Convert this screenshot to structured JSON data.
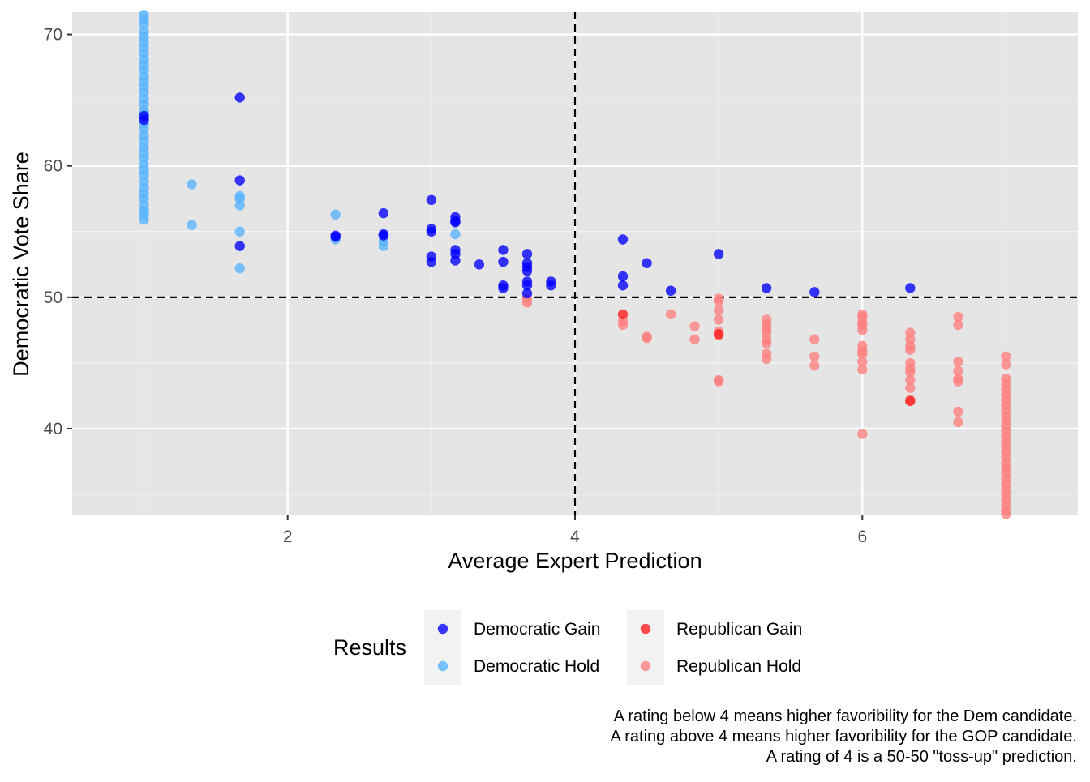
{
  "chart_data": {
    "type": "scatter",
    "title": "",
    "xlabel": "Average Expert Prediction",
    "ylabel": "Democratic Vote Share",
    "xlim": [
      0.5,
      7.5
    ],
    "ylim": [
      33.4,
      71.7
    ],
    "x_ticks": [
      2,
      4,
      6
    ],
    "y_ticks": [
      40,
      50,
      60,
      70
    ],
    "grid": true,
    "reference_lines": {
      "vertical_x": 4,
      "horizontal_y": 50,
      "style": "dashed"
    },
    "legend": {
      "title": "Results",
      "placement": "bottom"
    },
    "caption": [
      "A rating below 4 means higher favoribility for the Dem candidate.",
      "A rating above 4 means higher favoribility for the GOP candidate.",
      "A rating of 4 is a 50-50 \"toss-up\" prediction."
    ],
    "series": [
      {
        "name": "Democratic Gain",
        "color": "#0000ff",
        "points": [
          [
            1,
            63.5
          ],
          [
            1,
            63.8
          ],
          [
            1.667,
            65.2
          ],
          [
            1.667,
            58.9
          ],
          [
            1.667,
            53.9
          ],
          [
            2.333,
            54.7
          ],
          [
            2.333,
            54.6
          ],
          [
            2.667,
            56.4
          ],
          [
            2.667,
            54.8
          ],
          [
            2.667,
            54.7
          ],
          [
            3,
            57.4
          ],
          [
            3,
            55.2
          ],
          [
            3,
            55.0
          ],
          [
            3,
            53.1
          ],
          [
            3,
            52.7
          ],
          [
            3.167,
            56.1
          ],
          [
            3.167,
            55.8
          ],
          [
            3.167,
            55.7
          ],
          [
            3.167,
            53.6
          ],
          [
            3.167,
            53.3
          ],
          [
            3.167,
            52.8
          ],
          [
            3.333,
            52.5
          ],
          [
            3.5,
            53.6
          ],
          [
            3.5,
            52.7
          ],
          [
            3.5,
            50.9
          ],
          [
            3.5,
            50.7
          ],
          [
            3.667,
            53.3
          ],
          [
            3.667,
            52.6
          ],
          [
            3.667,
            52.3
          ],
          [
            3.667,
            52.0
          ],
          [
            3.667,
            51.2
          ],
          [
            3.667,
            50.9
          ],
          [
            3.667,
            50.3
          ],
          [
            3.833,
            51.2
          ],
          [
            3.833,
            50.9
          ],
          [
            4.333,
            54.4
          ],
          [
            4.333,
            51.6
          ],
          [
            4.333,
            50.9
          ],
          [
            4.5,
            52.6
          ],
          [
            4.667,
            50.5
          ],
          [
            5,
            53.3
          ],
          [
            5.333,
            50.7
          ],
          [
            5.667,
            50.4
          ],
          [
            6.333,
            50.7
          ]
        ]
      },
      {
        "name": "Democratic Hold",
        "color": "#56b4ff",
        "points": [
          [
            1,
            71.5
          ],
          [
            1,
            71.2
          ],
          [
            1,
            70.8
          ],
          [
            1,
            70.2
          ],
          [
            1,
            69.8
          ],
          [
            1,
            69.4
          ],
          [
            1,
            69.0
          ],
          [
            1,
            68.6
          ],
          [
            1,
            68.1
          ],
          [
            1,
            67.7
          ],
          [
            1,
            67.3
          ],
          [
            1,
            66.8
          ],
          [
            1,
            66.4
          ],
          [
            1,
            66.0
          ],
          [
            1,
            65.6
          ],
          [
            1,
            65.1
          ],
          [
            1,
            64.7
          ],
          [
            1,
            64.2
          ],
          [
            1,
            63.9
          ],
          [
            1,
            63.2
          ],
          [
            1,
            62.8
          ],
          [
            1,
            62.3
          ],
          [
            1,
            61.9
          ],
          [
            1,
            61.4
          ],
          [
            1,
            61.0
          ],
          [
            1,
            60.6
          ],
          [
            1,
            60.1
          ],
          [
            1,
            59.7
          ],
          [
            1,
            59.3
          ],
          [
            1,
            58.8
          ],
          [
            1,
            58.3
          ],
          [
            1,
            57.9
          ],
          [
            1,
            57.5
          ],
          [
            1,
            57.0
          ],
          [
            1,
            56.6
          ],
          [
            1,
            56.3
          ],
          [
            1,
            55.9
          ],
          [
            1.333,
            58.6
          ],
          [
            1.333,
            55.5
          ],
          [
            1.667,
            57.7
          ],
          [
            1.667,
            57.5
          ],
          [
            1.667,
            57.0
          ],
          [
            1.667,
            55.0
          ],
          [
            1.667,
            52.2
          ],
          [
            2.333,
            56.3
          ],
          [
            2.333,
            54.4
          ],
          [
            2.667,
            54.3
          ],
          [
            2.667,
            53.9
          ],
          [
            3.167,
            54.8
          ]
        ]
      },
      {
        "name": "Republican Gain",
        "color": "#ff1a1a",
        "points": [
          [
            4.333,
            48.7
          ],
          [
            5,
            47.2
          ],
          [
            6.333,
            42.1
          ]
        ]
      },
      {
        "name": "Republican Hold",
        "color": "#ff7f7f",
        "points": [
          [
            3.667,
            49.9
          ],
          [
            3.667,
            49.6
          ],
          [
            4.333,
            48.2
          ],
          [
            4.333,
            47.9
          ],
          [
            4.5,
            47.0
          ],
          [
            4.5,
            46.9
          ],
          [
            4.667,
            48.7
          ],
          [
            4.833,
            47.8
          ],
          [
            4.833,
            46.8
          ],
          [
            5,
            49.9
          ],
          [
            5,
            49.7
          ],
          [
            5,
            49.0
          ],
          [
            5,
            48.3
          ],
          [
            5,
            47.4
          ],
          [
            5,
            47.1
          ],
          [
            5,
            43.7
          ],
          [
            5,
            43.6
          ],
          [
            5.333,
            48.3
          ],
          [
            5.333,
            47.9
          ],
          [
            5.333,
            47.6
          ],
          [
            5.333,
            47.3
          ],
          [
            5.333,
            46.8
          ],
          [
            5.333,
            46.5
          ],
          [
            5.333,
            45.7
          ],
          [
            5.333,
            45.3
          ],
          [
            5.667,
            46.8
          ],
          [
            5.667,
            45.5
          ],
          [
            5.667,
            44.8
          ],
          [
            6,
            48.7
          ],
          [
            6,
            48.5
          ],
          [
            6,
            48.1
          ],
          [
            6,
            47.9
          ],
          [
            6,
            47.5
          ],
          [
            6,
            46.3
          ],
          [
            6,
            45.9
          ],
          [
            6,
            45.7
          ],
          [
            6,
            45.1
          ],
          [
            6,
            44.5
          ],
          [
            6,
            39.6
          ],
          [
            6.333,
            47.3
          ],
          [
            6.333,
            46.8
          ],
          [
            6.333,
            46.3
          ],
          [
            6.333,
            46.0
          ],
          [
            6.333,
            45.0
          ],
          [
            6.333,
            44.6
          ],
          [
            6.333,
            44.3
          ],
          [
            6.333,
            43.7
          ],
          [
            6.333,
            43.1
          ],
          [
            6.333,
            42.2
          ],
          [
            6.667,
            48.5
          ],
          [
            6.667,
            47.9
          ],
          [
            6.667,
            45.1
          ],
          [
            6.667,
            44.4
          ],
          [
            6.667,
            43.8
          ],
          [
            6.667,
            43.6
          ],
          [
            6.667,
            41.3
          ],
          [
            6.667,
            40.5
          ],
          [
            7,
            45.5
          ],
          [
            7,
            44.9
          ],
          [
            7,
            43.8
          ],
          [
            7,
            43.4
          ],
          [
            7,
            43.0
          ],
          [
            7,
            42.6
          ],
          [
            7,
            42.2
          ],
          [
            7,
            41.8
          ],
          [
            7,
            41.4
          ],
          [
            7,
            41.0
          ],
          [
            7,
            40.6
          ],
          [
            7,
            40.2
          ],
          [
            7,
            39.8
          ],
          [
            7,
            39.4
          ],
          [
            7,
            39.0
          ],
          [
            7,
            38.6
          ],
          [
            7,
            38.2
          ],
          [
            7,
            37.8
          ],
          [
            7,
            37.4
          ],
          [
            7,
            37.0
          ],
          [
            7,
            36.6
          ],
          [
            7,
            36.2
          ],
          [
            7,
            35.8
          ],
          [
            7,
            35.4
          ],
          [
            7,
            35.0
          ],
          [
            7,
            34.6
          ],
          [
            7,
            34.2
          ],
          [
            7,
            33.8
          ],
          [
            7,
            33.5
          ]
        ]
      }
    ]
  }
}
